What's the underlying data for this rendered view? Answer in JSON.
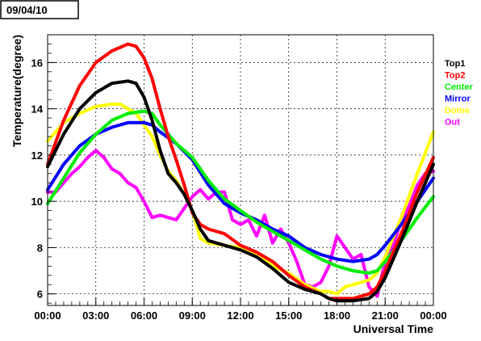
{
  "date_label": "09/04/10",
  "colors": {
    "Top1": "#000000",
    "Top2": "#ff0000",
    "Center": "#00ee00",
    "Mirror": "#0000ff",
    "Dome": "#ffff00",
    "Out": "#ff00ff"
  },
  "chart_data": {
    "type": "line",
    "xlabel": "Universal Time",
    "ylabel": "Temperature(degree)",
    "xlim": [
      0,
      24
    ],
    "ylim": [
      5.5,
      17.2
    ],
    "x_ticks": [
      {
        "value": 0,
        "label": "00:00"
      },
      {
        "value": 3,
        "label": "03:00"
      },
      {
        "value": 6,
        "label": "06:00"
      },
      {
        "value": 9,
        "label": "09:00"
      },
      {
        "value": 12,
        "label": "12:00"
      },
      {
        "value": 15,
        "label": "15:00"
      },
      {
        "value": 18,
        "label": "18:00"
      },
      {
        "value": 21,
        "label": "21:00"
      },
      {
        "value": 24,
        "label": "00:00"
      }
    ],
    "y_ticks": [
      {
        "value": 6,
        "label": "6"
      },
      {
        "value": 8,
        "label": "8"
      },
      {
        "value": 10,
        "label": "10"
      },
      {
        "value": 12,
        "label": "12"
      },
      {
        "value": 14,
        "label": "14"
      },
      {
        "value": 16,
        "label": "16"
      }
    ],
    "grid": true,
    "legend_position": "right",
    "series": [
      {
        "name": "Top1",
        "points": [
          [
            0,
            11.5
          ],
          [
            1,
            12.9
          ],
          [
            2,
            14.0
          ],
          [
            3,
            14.7
          ],
          [
            4,
            15.1
          ],
          [
            5,
            15.2
          ],
          [
            5.5,
            15.1
          ],
          [
            6,
            14.5
          ],
          [
            6.5,
            13.5
          ],
          [
            7,
            12.2
          ],
          [
            7.5,
            11.2
          ],
          [
            8,
            10.8
          ],
          [
            8.5,
            10.3
          ],
          [
            9,
            9.6
          ],
          [
            9.5,
            8.8
          ],
          [
            10,
            8.3
          ],
          [
            11,
            8.1
          ],
          [
            12,
            7.9
          ],
          [
            13,
            7.6
          ],
          [
            14,
            7.1
          ],
          [
            15,
            6.5
          ],
          [
            16,
            6.2
          ],
          [
            17,
            6.0
          ],
          [
            17.5,
            5.8
          ],
          [
            18,
            5.7
          ],
          [
            19,
            5.7
          ],
          [
            20,
            5.8
          ],
          [
            20.5,
            6.1
          ],
          [
            21,
            6.7
          ],
          [
            22,
            8.3
          ],
          [
            23,
            10.0
          ],
          [
            24,
            11.6
          ]
        ]
      },
      {
        "name": "Top2",
        "points": [
          [
            0,
            11.6
          ],
          [
            1,
            13.5
          ],
          [
            2,
            15.0
          ],
          [
            3,
            16.0
          ],
          [
            4,
            16.5
          ],
          [
            5,
            16.8
          ],
          [
            5.5,
            16.7
          ],
          [
            6,
            16.2
          ],
          [
            6.5,
            15.3
          ],
          [
            7,
            14.0
          ],
          [
            7.5,
            12.8
          ],
          [
            8,
            11.8
          ],
          [
            8.5,
            10.7
          ],
          [
            9,
            9.5
          ],
          [
            9.5,
            9.0
          ],
          [
            10,
            8.8
          ],
          [
            11,
            8.6
          ],
          [
            12,
            8.1
          ],
          [
            13,
            7.8
          ],
          [
            14,
            7.4
          ],
          [
            15,
            6.8
          ],
          [
            16,
            6.3
          ],
          [
            17,
            6.0
          ],
          [
            17.5,
            5.8
          ],
          [
            18,
            5.8
          ],
          [
            19,
            5.8
          ],
          [
            20,
            6.0
          ],
          [
            20.5,
            6.3
          ],
          [
            21,
            7.0
          ],
          [
            22,
            8.6
          ],
          [
            23,
            10.4
          ],
          [
            24,
            11.9
          ]
        ]
      },
      {
        "name": "Center",
        "points": [
          [
            0,
            9.9
          ],
          [
            1,
            11.0
          ],
          [
            2,
            12.1
          ],
          [
            3,
            12.9
          ],
          [
            4,
            13.5
          ],
          [
            5,
            13.8
          ],
          [
            6,
            13.9
          ],
          [
            6.5,
            13.8
          ],
          [
            7,
            13.3
          ],
          [
            7.5,
            12.9
          ],
          [
            8,
            12.5
          ],
          [
            9,
            11.9
          ],
          [
            10,
            10.9
          ],
          [
            11,
            10.1
          ],
          [
            12,
            9.6
          ],
          [
            13,
            9.1
          ],
          [
            14,
            8.7
          ],
          [
            15,
            8.3
          ],
          [
            16,
            7.9
          ],
          [
            17,
            7.5
          ],
          [
            18,
            7.2
          ],
          [
            19,
            7.0
          ],
          [
            20,
            6.9
          ],
          [
            20.5,
            7.0
          ],
          [
            21,
            7.4
          ],
          [
            22,
            8.3
          ],
          [
            23,
            9.3
          ],
          [
            24,
            10.2
          ]
        ]
      },
      {
        "name": "Mirror",
        "points": [
          [
            0,
            10.5
          ],
          [
            1,
            11.6
          ],
          [
            2,
            12.4
          ],
          [
            3,
            12.9
          ],
          [
            4,
            13.2
          ],
          [
            5,
            13.4
          ],
          [
            6,
            13.4
          ],
          [
            6.5,
            13.3
          ],
          [
            7,
            13.0
          ],
          [
            8,
            12.5
          ],
          [
            9,
            11.8
          ],
          [
            10,
            10.7
          ],
          [
            11,
            9.9
          ],
          [
            12,
            9.5
          ],
          [
            13,
            9.2
          ],
          [
            14,
            8.8
          ],
          [
            15,
            8.5
          ],
          [
            16,
            8.0
          ],
          [
            17,
            7.7
          ],
          [
            18,
            7.5
          ],
          [
            19,
            7.4
          ],
          [
            20,
            7.5
          ],
          [
            20.5,
            7.7
          ],
          [
            21,
            8.1
          ],
          [
            22,
            9.0
          ],
          [
            23,
            10.0
          ],
          [
            24,
            11.0
          ]
        ]
      },
      {
        "name": "Dome",
        "points": [
          [
            0,
            12.6
          ],
          [
            0.5,
            13.0
          ],
          [
            1,
            13.4
          ],
          [
            2,
            13.8
          ],
          [
            3,
            14.1
          ],
          [
            4,
            14.2
          ],
          [
            4.5,
            14.2
          ],
          [
            5,
            14.0
          ],
          [
            5.5,
            13.8
          ],
          [
            6,
            13.3
          ],
          [
            6.5,
            12.8
          ],
          [
            7,
            12.0
          ],
          [
            7.5,
            11.3
          ],
          [
            8,
            10.9
          ],
          [
            8.5,
            10.3
          ],
          [
            9,
            9.6
          ],
          [
            9.5,
            8.4
          ],
          [
            10,
            8.2
          ],
          [
            11,
            8.1
          ],
          [
            12,
            8.0
          ],
          [
            13,
            7.7
          ],
          [
            14,
            7.2
          ],
          [
            15,
            6.9
          ],
          [
            16,
            6.4
          ],
          [
            17,
            6.1
          ],
          [
            17.5,
            6.1
          ],
          [
            18,
            6.0
          ],
          [
            18.5,
            6.3
          ],
          [
            19,
            6.4
          ],
          [
            19.5,
            6.5
          ],
          [
            20,
            6.6
          ],
          [
            20.5,
            6.9
          ],
          [
            21,
            7.6
          ],
          [
            22,
            9.3
          ],
          [
            23,
            11.2
          ],
          [
            24,
            13.0
          ]
        ]
      },
      {
        "name": "Out",
        "points": [
          [
            0,
            10.4
          ],
          [
            0.5,
            10.4
          ],
          [
            1,
            10.8
          ],
          [
            1.5,
            11.2
          ],
          [
            2,
            11.5
          ],
          [
            2.5,
            11.9
          ],
          [
            3,
            12.2
          ],
          [
            3.5,
            11.9
          ],
          [
            4,
            11.4
          ],
          [
            4.5,
            11.2
          ],
          [
            5,
            10.8
          ],
          [
            5.5,
            10.6
          ],
          [
            6,
            10.0
          ],
          [
            6.5,
            9.3
          ],
          [
            7,
            9.4
          ],
          [
            7.5,
            9.3
          ],
          [
            8,
            9.2
          ],
          [
            8.5,
            9.7
          ],
          [
            9,
            10.2
          ],
          [
            9.5,
            10.5
          ],
          [
            10,
            10.1
          ],
          [
            10.5,
            10.4
          ],
          [
            11,
            10.4
          ],
          [
            11.5,
            9.2
          ],
          [
            12,
            9.0
          ],
          [
            12.5,
            9.2
          ],
          [
            13,
            8.5
          ],
          [
            13.5,
            9.4
          ],
          [
            14,
            8.2
          ],
          [
            14.5,
            8.8
          ],
          [
            15,
            8.2
          ],
          [
            15.5,
            7.4
          ],
          [
            16,
            6.4
          ],
          [
            16.5,
            6.3
          ],
          [
            17,
            6.5
          ],
          [
            17.5,
            7.2
          ],
          [
            18,
            8.5
          ],
          [
            18.5,
            8.0
          ],
          [
            19,
            7.5
          ],
          [
            19.5,
            7.7
          ],
          [
            20,
            6.3
          ],
          [
            20.5,
            5.9
          ],
          [
            21,
            7.4
          ],
          [
            21.5,
            8.1
          ],
          [
            22,
            9.2
          ],
          [
            22.5,
            9.8
          ],
          [
            23,
            10.7
          ],
          [
            23.5,
            11.2
          ],
          [
            24,
            11.3
          ]
        ]
      }
    ]
  }
}
